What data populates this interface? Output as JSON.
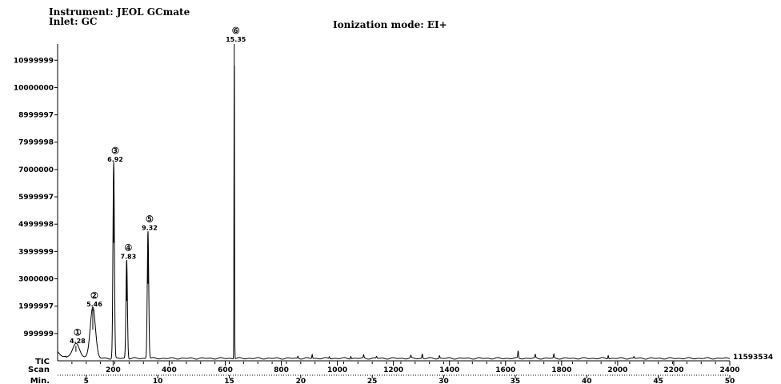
{
  "header": {
    "instrument": "Instrument: JEOL GCmate",
    "inlet": "Inlet: GC",
    "ionization": "Ionization mode: EI+"
  },
  "chart_data": {
    "type": "line",
    "trace_label": "TIC",
    "max_intensity_label": "11593534",
    "scan_row_label": "Scan",
    "min_row_label": "Min.",
    "y_ticks": [
      "999999",
      "1999997",
      "3000000",
      "3999999",
      "4999998",
      "5999997",
      "7000000",
      "7999998",
      "8999997",
      "10000000",
      "10999999"
    ],
    "y_tick_values": [
      999999,
      1999997,
      3000000,
      3999999,
      4999998,
      5999997,
      7000000,
      7999998,
      8999997,
      10000000,
      10999999
    ],
    "ylim": [
      0,
      11593534
    ],
    "x_scan_ticks": [
      "200",
      "400",
      "600",
      "800",
      "1000",
      "1200",
      "1400",
      "1600",
      "1800",
      "2000",
      "2200",
      "2400"
    ],
    "x_scan_values": [
      200,
      400,
      600,
      800,
      1000,
      1200,
      1400,
      1600,
      1800,
      2000,
      2200,
      2400
    ],
    "x_min_ticks": [
      "5",
      "10",
      "15",
      "20",
      "25",
      "30",
      "35",
      "40",
      "45",
      "50"
    ],
    "x_min_values": [
      5,
      10,
      15,
      20,
      25,
      30,
      35,
      40,
      45,
      50
    ],
    "xlim": [
      3,
      50
    ],
    "peaks": [
      {
        "id": "1",
        "time": "4.28",
        "rt": 4.28,
        "height": 550000,
        "width": 0.25
      },
      {
        "id": "2",
        "time": "5.46",
        "rt": 5.46,
        "height": 1900000,
        "width": 0.18
      },
      {
        "id": "3",
        "time": "6.92",
        "rt": 6.92,
        "height": 7200000,
        "width": 0.05
      },
      {
        "id": "4",
        "time": "7.83",
        "rt": 7.83,
        "height": 3650000,
        "width": 0.05
      },
      {
        "id": "5",
        "time": "9.32",
        "rt": 9.32,
        "height": 4700000,
        "width": 0.05
      },
      {
        "id": "6",
        "time": "15.35",
        "rt": 15.35,
        "height": 11593534,
        "width": 0.018
      }
    ],
    "minor_peaks": [
      {
        "rt": 19.8,
        "height": 80000
      },
      {
        "rt": 20.8,
        "height": 140000
      },
      {
        "rt": 22.0,
        "height": 70000
      },
      {
        "rt": 23.5,
        "height": 90000
      },
      {
        "rt": 24.4,
        "height": 110000
      },
      {
        "rt": 25.3,
        "height": 70000
      },
      {
        "rt": 27.7,
        "height": 90000
      },
      {
        "rt": 28.5,
        "height": 170000
      },
      {
        "rt": 29.7,
        "height": 100000
      },
      {
        "rt": 35.2,
        "height": 260000
      },
      {
        "rt": 36.4,
        "height": 130000
      },
      {
        "rt": 37.7,
        "height": 140000
      },
      {
        "rt": 41.5,
        "height": 120000
      },
      {
        "rt": 43.3,
        "height": 60000
      }
    ]
  }
}
